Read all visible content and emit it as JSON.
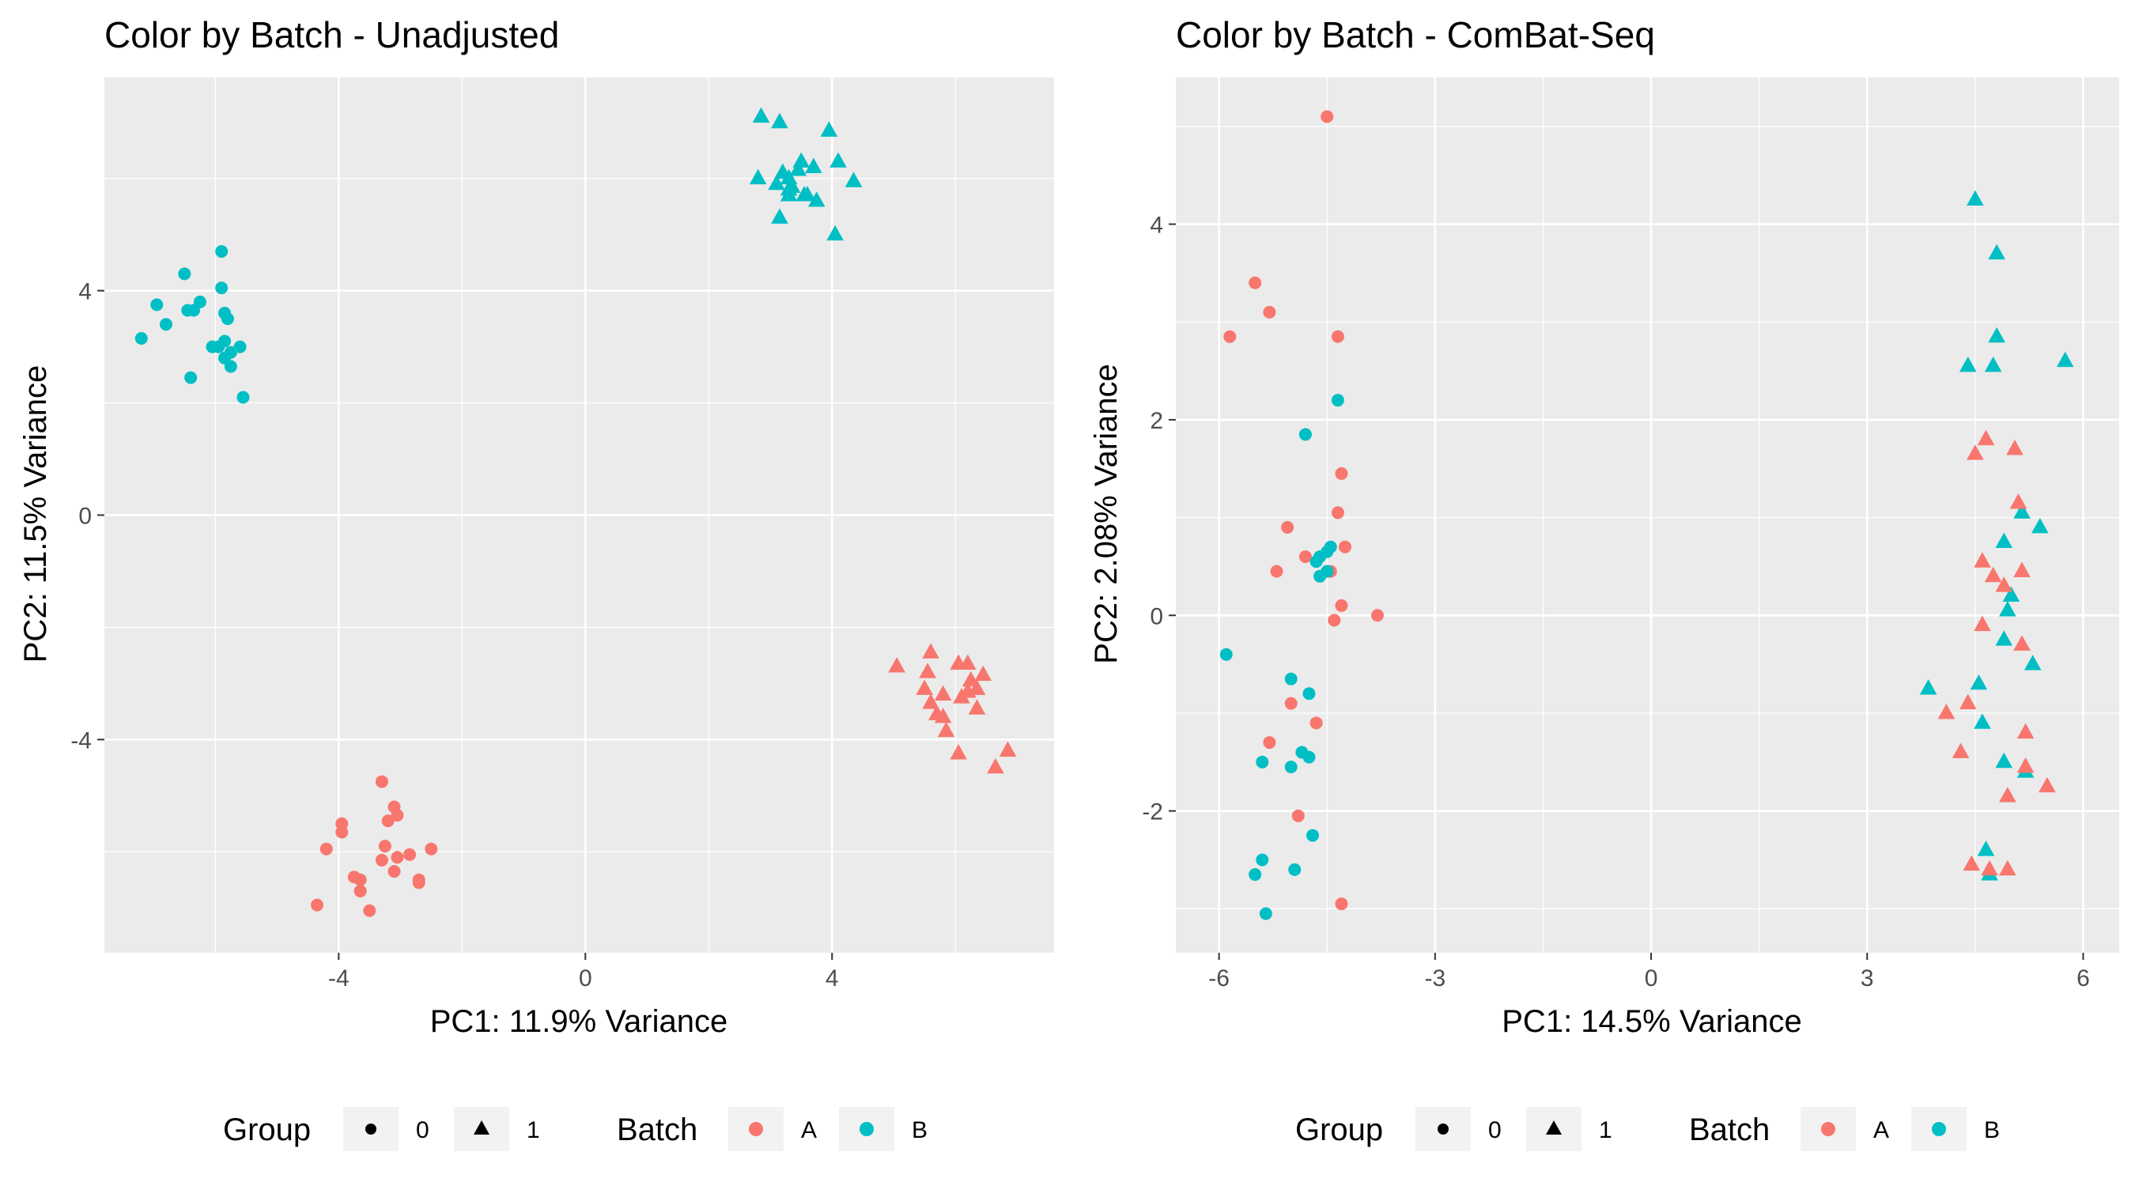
{
  "colors": {
    "batch_A": "#F8766D",
    "batch_B": "#00BFC4",
    "shape_key": "#000000"
  },
  "legend": {
    "group_title": "Group",
    "group_labels": [
      "0",
      "1"
    ],
    "batch_title": "Batch",
    "batch_labels": [
      "A",
      "B"
    ]
  },
  "chart_data": [
    {
      "type": "scatter",
      "title": "Color by Batch - Unadjusted",
      "xlabel": "PC1: 11.9% Variance",
      "ylabel": "PC2: 11.5% Variance",
      "xlim": [
        -7.8,
        7.6
      ],
      "ylim": [
        -7.8,
        7.8
      ],
      "xticks": [
        -4,
        0,
        4
      ],
      "yticks": [
        -4,
        0,
        4
      ],
      "xtick_labels": [
        "-4",
        "0",
        "4"
      ],
      "ytick_labels": [
        "-4",
        "0",
        "4"
      ],
      "xminor": [
        -6,
        -2,
        2,
        6
      ],
      "yminor": [
        -6,
        -2,
        2,
        6
      ],
      "series": [
        {
          "batch": "B",
          "group": "0",
          "points": [
            [
              -7.2,
              3.15
            ],
            [
              -6.95,
              3.75
            ],
            [
              -6.8,
              3.4
            ],
            [
              -6.5,
              4.3
            ],
            [
              -6.45,
              3.65
            ],
            [
              -6.35,
              3.65
            ],
            [
              -6.25,
              3.8
            ],
            [
              -6.05,
              3.0
            ],
            [
              -5.95,
              3.0
            ],
            [
              -5.9,
              4.7
            ],
            [
              -5.9,
              4.05
            ],
            [
              -5.85,
              3.6
            ],
            [
              -5.85,
              2.8
            ],
            [
              -5.8,
              3.5
            ],
            [
              -5.75,
              2.9
            ],
            [
              -5.75,
              2.65
            ],
            [
              -5.6,
              3.0
            ],
            [
              -5.85,
              3.1
            ],
            [
              -6.4,
              2.45
            ],
            [
              -5.55,
              2.1
            ]
          ]
        },
        {
          "batch": "B",
          "group": "1",
          "points": [
            [
              2.85,
              7.1
            ],
            [
              3.15,
              7.0
            ],
            [
              3.95,
              6.85
            ],
            [
              2.8,
              6.0
            ],
            [
              3.1,
              5.9
            ],
            [
              3.2,
              6.1
            ],
            [
              3.3,
              6.0
            ],
            [
              3.5,
              6.3
            ],
            [
              3.7,
              6.2
            ],
            [
              4.1,
              6.3
            ],
            [
              4.35,
              5.95
            ],
            [
              3.3,
              5.8
            ],
            [
              3.35,
              5.85
            ],
            [
              3.55,
              5.7
            ],
            [
              3.75,
              5.6
            ],
            [
              3.6,
              5.7
            ],
            [
              3.15,
              5.3
            ],
            [
              4.05,
              5.0
            ],
            [
              3.3,
              5.7
            ],
            [
              3.45,
              6.15
            ]
          ]
        },
        {
          "batch": "A",
          "group": "0",
          "points": [
            [
              -3.3,
              -4.75
            ],
            [
              -3.1,
              -5.2
            ],
            [
              -3.2,
              -5.45
            ],
            [
              -3.05,
              -5.35
            ],
            [
              -3.95,
              -5.5
            ],
            [
              -3.95,
              -5.65
            ],
            [
              -4.2,
              -5.95
            ],
            [
              -3.25,
              -5.9
            ],
            [
              -2.5,
              -5.95
            ],
            [
              -3.3,
              -6.15
            ],
            [
              -3.05,
              -6.1
            ],
            [
              -2.85,
              -6.05
            ],
            [
              -2.7,
              -6.5
            ],
            [
              -2.7,
              -6.55
            ],
            [
              -3.75,
              -6.45
            ],
            [
              -3.65,
              -6.5
            ],
            [
              -3.1,
              -6.35
            ],
            [
              -3.65,
              -6.7
            ],
            [
              -4.35,
              -6.95
            ],
            [
              -3.5,
              -7.05
            ]
          ]
        },
        {
          "batch": "A",
          "group": "1",
          "points": [
            [
              5.05,
              -2.7
            ],
            [
              5.6,
              -2.45
            ],
            [
              5.55,
              -2.8
            ],
            [
              6.05,
              -2.65
            ],
            [
              6.2,
              -2.65
            ],
            [
              6.25,
              -2.95
            ],
            [
              6.45,
              -2.85
            ],
            [
              5.5,
              -3.1
            ],
            [
              6.2,
              -3.15
            ],
            [
              6.35,
              -3.1
            ],
            [
              5.8,
              -3.2
            ],
            [
              6.1,
              -3.25
            ],
            [
              5.6,
              -3.35
            ],
            [
              5.7,
              -3.55
            ],
            [
              5.8,
              -3.6
            ],
            [
              6.35,
              -3.45
            ],
            [
              5.85,
              -3.85
            ],
            [
              6.05,
              -4.25
            ],
            [
              6.85,
              -4.2
            ],
            [
              6.65,
              -4.5
            ]
          ]
        }
      ]
    },
    {
      "type": "scatter",
      "title": "Color by Batch - ComBat-Seq",
      "xlabel": "PC1: 14.5% Variance",
      "ylabel": "PC2: 2.08% Variance",
      "xlim": [
        -6.6,
        6.5
      ],
      "ylim": [
        -3.45,
        5.5
      ],
      "xticks": [
        -6,
        -3,
        0,
        3,
        6
      ],
      "yticks": [
        -2,
        0,
        2,
        4
      ],
      "xtick_labels": [
        "-6",
        "-3",
        "0",
        "3",
        "6"
      ],
      "ytick_labels": [
        "-2",
        "0",
        "2",
        "4"
      ],
      "xminor": [
        -4.5,
        -1.5,
        1.5,
        4.5
      ],
      "yminor": [
        -3,
        -1,
        1,
        3,
        5
      ],
      "series": [
        {
          "batch": "A",
          "group": "0",
          "points": [
            [
              -4.5,
              5.1
            ],
            [
              -5.5,
              3.4
            ],
            [
              -5.3,
              3.1
            ],
            [
              -5.85,
              2.85
            ],
            [
              -4.35,
              2.85
            ],
            [
              -4.3,
              1.45
            ],
            [
              -4.35,
              1.05
            ],
            [
              -5.05,
              0.9
            ],
            [
              -4.8,
              0.6
            ],
            [
              -4.25,
              0.7
            ],
            [
              -5.2,
              0.45
            ],
            [
              -4.45,
              0.45
            ],
            [
              -4.3,
              0.1
            ],
            [
              -3.8,
              0.0
            ],
            [
              -4.4,
              -0.05
            ],
            [
              -5.0,
              -0.9
            ],
            [
              -5.3,
              -1.3
            ],
            [
              -4.65,
              -1.1
            ],
            [
              -4.9,
              -2.05
            ],
            [
              -4.3,
              -2.95
            ]
          ]
        },
        {
          "batch": "B",
          "group": "0",
          "points": [
            [
              -4.35,
              2.2
            ],
            [
              -4.8,
              1.85
            ],
            [
              -4.45,
              0.7
            ],
            [
              -4.6,
              0.6
            ],
            [
              -4.65,
              0.55
            ],
            [
              -4.5,
              0.45
            ],
            [
              -4.6,
              0.4
            ],
            [
              -5.9,
              -0.4
            ],
            [
              -5.0,
              -0.65
            ],
            [
              -4.75,
              -0.8
            ],
            [
              -4.85,
              -1.4
            ],
            [
              -4.75,
              -1.45
            ],
            [
              -5.4,
              -1.5
            ],
            [
              -5.0,
              -1.55
            ],
            [
              -4.7,
              -2.25
            ],
            [
              -5.4,
              -2.5
            ],
            [
              -5.5,
              -2.65
            ],
            [
              -4.95,
              -2.6
            ],
            [
              -5.35,
              -3.05
            ],
            [
              -4.5,
              0.65
            ]
          ]
        },
        {
          "batch": "B",
          "group": "1",
          "points": [
            [
              4.5,
              4.25
            ],
            [
              4.8,
              3.7
            ],
            [
              4.8,
              2.85
            ],
            [
              4.4,
              2.55
            ],
            [
              4.75,
              2.55
            ],
            [
              5.75,
              2.6
            ],
            [
              5.15,
              1.05
            ],
            [
              5.4,
              0.9
            ],
            [
              4.9,
              0.75
            ],
            [
              5.0,
              0.2
            ],
            [
              4.95,
              0.05
            ],
            [
              4.9,
              -0.25
            ],
            [
              5.3,
              -0.5
            ],
            [
              3.85,
              -0.75
            ],
            [
              4.55,
              -0.7
            ],
            [
              4.6,
              -1.1
            ],
            [
              4.9,
              -1.5
            ],
            [
              5.2,
              -1.6
            ],
            [
              4.65,
              -2.4
            ],
            [
              4.7,
              -2.65
            ]
          ]
        },
        {
          "batch": "A",
          "group": "1",
          "points": [
            [
              4.65,
              1.8
            ],
            [
              5.05,
              1.7
            ],
            [
              4.5,
              1.65
            ],
            [
              5.1,
              1.15
            ],
            [
              4.6,
              0.55
            ],
            [
              4.75,
              0.4
            ],
            [
              4.9,
              0.3
            ],
            [
              5.15,
              0.45
            ],
            [
              4.6,
              -0.1
            ],
            [
              5.15,
              -0.3
            ],
            [
              4.1,
              -1.0
            ],
            [
              4.4,
              -0.9
            ],
            [
              5.2,
              -1.2
            ],
            [
              4.3,
              -1.4
            ],
            [
              5.2,
              -1.55
            ],
            [
              5.5,
              -1.75
            ],
            [
              4.95,
              -1.85
            ],
            [
              4.45,
              -2.55
            ],
            [
              4.7,
              -2.6
            ],
            [
              4.95,
              -2.6
            ]
          ]
        }
      ]
    }
  ]
}
